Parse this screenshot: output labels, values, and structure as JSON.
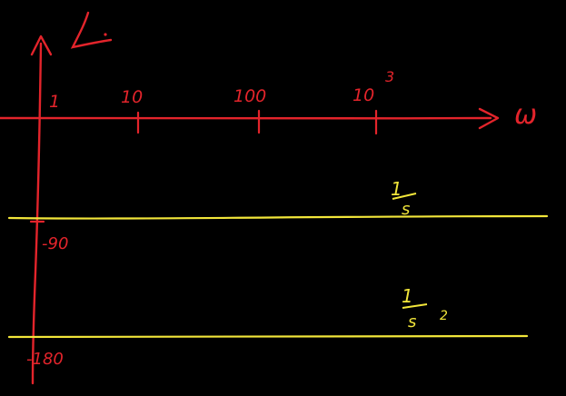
{
  "colors": {
    "background": "#000000",
    "axes": "#e3242b",
    "curves": "#f2e63a"
  },
  "vertical_axis": {
    "label": "∠"
  },
  "horizontal_axis": {
    "label": "ω",
    "ticks": [
      {
        "label": "1",
        "exp": ""
      },
      {
        "label": "10",
        "exp": ""
      },
      {
        "label": "100",
        "exp": ""
      },
      {
        "label": "10",
        "exp": "3"
      }
    ]
  },
  "phase_ticks": [
    {
      "label": "-90"
    },
    {
      "label": "-180"
    }
  ],
  "curves": [
    {
      "numerator": "1",
      "denominator": "s",
      "exponent": "",
      "phase": -90
    },
    {
      "numerator": "1",
      "denominator": "s",
      "exponent": "2",
      "phase": -180
    }
  ]
}
